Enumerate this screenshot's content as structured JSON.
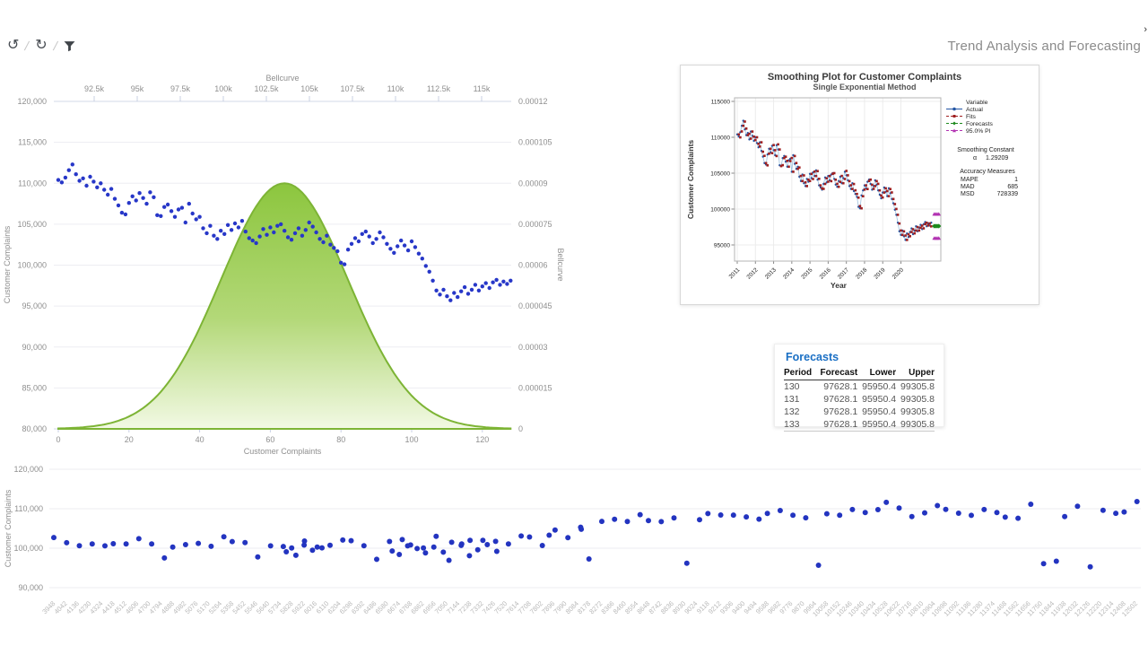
{
  "toolbar": {
    "undo_glyph": "↺",
    "refresh_glyph": "↻",
    "separator": "/",
    "filter_icon": "funnel-icon",
    "title": "Trend Analysis and Forecasting",
    "chevron_glyph": "›"
  },
  "forecasts_panel": {
    "title": "Forecasts",
    "columns": [
      "Period",
      "Forecast",
      "Lower",
      "Upper"
    ],
    "rows": [
      [
        "130",
        "97628.1",
        "95950.4",
        "99305.8"
      ],
      [
        "131",
        "97628.1",
        "95950.4",
        "99305.8"
      ],
      [
        "132",
        "97628.1",
        "95950.4",
        "99305.8"
      ],
      [
        "133",
        "97628.1",
        "95950.4",
        "99305.8"
      ]
    ]
  },
  "chart_data": [
    {
      "id": "bellcurve_scatter",
      "type": "scatter",
      "title": "",
      "x_bottom": {
        "label": "Customer Complaints",
        "ticks": [
          0,
          20,
          40,
          60,
          80,
          100,
          120
        ],
        "range": [
          0,
          128
        ]
      },
      "x_top": {
        "label": "Bellcurve",
        "ticks": [
          "92.5k",
          "95k",
          "97.5k",
          "100k",
          "102.5k",
          "105k",
          "107.5k",
          "110k",
          "112.5k",
          "115k"
        ],
        "range": [
          90000,
          117500
        ]
      },
      "y_left": {
        "label": "Customer Complaints",
        "ticks": [
          "120,000",
          "115,000",
          "110,000",
          "105,000",
          "100,000",
          "95,000",
          "90,000",
          "85,000",
          "80,000"
        ],
        "range": [
          80000,
          120000
        ]
      },
      "y_right": {
        "label": "Bellcurve",
        "ticks": [
          "0.00012",
          "0.000105",
          "0.00009",
          "0.000075",
          "0.00006",
          "0.000045",
          "0.00003",
          "0.000015",
          "0"
        ],
        "range": [
          0,
          0.00012
        ]
      },
      "grid": "horizontal",
      "scatter_color": "#2737c8",
      "bell": {
        "mean": 64,
        "sigma": 18,
        "peak": 9e-05,
        "stroke": "#7db435",
        "fill_top": "#8cc63e",
        "fill_bottom": "#f2f9e4"
      },
      "points_y_thousands": [
        110.4,
        110.1,
        110.7,
        111.6,
        112.3,
        111.1,
        110.3,
        110.6,
        109.7,
        110.8,
        110.2,
        109.5,
        110.0,
        109.2,
        108.6,
        109.3,
        108.1,
        107.3,
        106.4,
        106.2,
        107.6,
        108.4,
        107.9,
        108.8,
        108.2,
        107.5,
        108.9,
        108.3,
        106.1,
        106.0,
        107.1,
        107.4,
        106.6,
        105.9,
        106.8,
        107.0,
        105.2,
        107.5,
        106.3,
        105.6,
        105.9,
        104.5,
        103.9,
        104.8,
        103.6,
        103.2,
        104.2,
        103.8,
        104.9,
        104.3,
        105.1,
        104.6,
        105.4,
        104.1,
        103.3,
        103.0,
        102.7,
        103.5,
        104.4,
        103.7,
        104.6,
        104.0,
        104.8,
        105.0,
        104.2,
        103.4,
        103.1,
        103.9,
        104.5,
        103.6,
        104.3,
        105.2,
        104.7,
        104.0,
        103.2,
        102.8,
        103.6,
        102.5,
        102.1,
        101.7,
        100.3,
        100.1,
        101.9,
        102.6,
        103.3,
        102.9,
        103.8,
        104.1,
        103.5,
        102.7,
        103.2,
        104.0,
        103.4,
        102.6,
        102.0,
        101.5,
        102.3,
        103.0,
        102.4,
        101.8,
        102.9,
        102.2,
        101.4,
        100.8,
        99.9,
        99.2,
        98.1,
        96.9,
        96.4,
        97.0,
        96.2,
        95.7,
        96.6,
        96.1,
        96.8,
        97.3,
        96.5,
        97.0,
        97.6,
        96.9,
        97.4,
        97.8,
        97.2,
        97.9,
        98.2,
        97.6,
        98.0,
        97.7,
        98.1
      ]
    },
    {
      "id": "smoothing_plot",
      "type": "line",
      "title": "Smoothing Plot for Customer Complaints",
      "subtitle": "Single Exponential Method",
      "xlabel": "Year",
      "ylabel": "Customer Complaints",
      "x_ticks": [
        "2011",
        "2012",
        "2013",
        "2014",
        "2015",
        "2016",
        "2017",
        "2018",
        "2019",
        "2020"
      ],
      "y_ticks": [
        "115000",
        "110000",
        "105000",
        "100000",
        "95000"
      ],
      "ylim": [
        93000,
        116000
      ],
      "actual_source": "bellcurve_scatter",
      "fits_rule": "lag1_of_actual",
      "legend": {
        "header": "Variable",
        "entries": [
          {
            "label": "Actual",
            "color": "#2456a4",
            "marker": "circle"
          },
          {
            "label": "Fits",
            "color": "#a02020",
            "marker": "square"
          },
          {
            "label": "Forecasts",
            "color": "#1d8a1d",
            "marker": "diamond"
          },
          {
            "label": "95.0% PI",
            "color": "#b232b2",
            "marker": "triangle"
          }
        ]
      },
      "smoothing_constant": {
        "label": "Smoothing Constant",
        "alpha_symbol": "α",
        "alpha": "1.29209"
      },
      "accuracy": {
        "label": "Accuracy Measures",
        "rows": [
          [
            "MAPE",
            "1"
          ],
          [
            "MAD",
            "685"
          ],
          [
            "MSD",
            "728339"
          ]
        ]
      },
      "forecasts": {
        "periods": [
          130,
          131,
          132,
          133
        ],
        "value": 97628.1,
        "lower": 95950.4,
        "upper": 99305.8
      }
    },
    {
      "id": "complaints_strip",
      "type": "scatter",
      "ylabel": "Customer Complaints",
      "y_ticks": [
        "120,000",
        "110,000",
        "100,000",
        "90,000"
      ],
      "ylim": [
        90000,
        120000
      ],
      "dot_color": "#2334c0",
      "x_labels": [
        3948,
        4042,
        4136,
        4230,
        4324,
        4418,
        4512,
        4606,
        4700,
        4794,
        4888,
        4982,
        5076,
        5170,
        5264,
        5358,
        5452,
        5546,
        5640,
        5734,
        5828,
        5922,
        6016,
        6110,
        6204,
        6298,
        6392,
        6486,
        6580,
        6674,
        6768,
        6862,
        6956,
        7050,
        7144,
        7238,
        7332,
        7426,
        7520,
        7614,
        7708,
        7802,
        7896,
        7990,
        8084,
        8178,
        8272,
        8366,
        8460,
        8554,
        8648,
        8742,
        8836,
        8930,
        9024,
        9118,
        9212,
        9306,
        9400,
        9494,
        9588,
        9682,
        9776,
        9870,
        9964,
        10058,
        10152,
        10246,
        10340,
        10434,
        10528,
        10622,
        10716,
        10810,
        10904,
        10998,
        11092,
        11186,
        11280,
        11374,
        11468,
        11562,
        11656,
        11750,
        11844,
        11938,
        12032,
        12126,
        12220,
        12314,
        12408,
        12502
      ],
      "points_y_thousands": [
        102.3,
        101.8,
        100.9,
        101.2,
        100.6,
        101.0,
        100.8,
        102.0,
        101.5,
        97.8,
        100.4,
        100.9,
        101.1,
        100.2,
        102.5,
        102.1,
        101.7,
        97.9,
        100.6,
        100.3,
        99.8,
        101.4,
        100.7,
        101.0,
        102.2,
        101.9,
        100.5,
        96.9,
        101.3,
        102.6,
        101.1,
        100.2,
        103.0,
        96.8,
        100.8,
        101.6,
        102.4,
        102.0,
        101.2,
        103.1,
        102.7,
        100.4,
        104.2,
        103.1,
        105.6,
        97.4,
        106.8,
        107.2,
        106.5,
        108.1,
        107.4,
        107.0,
        107.8,
        96.2,
        107.1,
        108.5,
        108.0,
        108.8,
        108.2,
        107.5,
        108.8,
        109.4,
        108.1,
        107.3,
        96.1,
        109.0,
        108.5,
        109.8,
        108.9,
        109.5,
        111.2,
        110.6,
        108.3,
        109.1,
        110.8,
        109.7,
        108.6,
        107.9,
        110.2,
        109.3,
        108.0,
        107.6,
        111.0,
        95.8,
        96.3,
        108.4,
        110.9,
        95.4,
        109.6,
        108.7,
        108.9,
        111.4
      ],
      "extra_points": [
        [
          19.4,
          99.1
        ],
        [
          20.2,
          98.2
        ],
        [
          20.9,
          100.8
        ],
        [
          21.6,
          99.5
        ],
        [
          22.4,
          100.1
        ],
        [
          28.3,
          99.3
        ],
        [
          28.9,
          98.4
        ],
        [
          29.6,
          100.6
        ],
        [
          30.4,
          99.9
        ],
        [
          31.1,
          98.8
        ],
        [
          31.8,
          100.3
        ],
        [
          32.6,
          99.0
        ],
        [
          33.3,
          101.5
        ],
        [
          34.1,
          100.7
        ],
        [
          34.8,
          98.1
        ],
        [
          35.5,
          99.6
        ],
        [
          36.3,
          100.9
        ],
        [
          37.1,
          99.2
        ],
        [
          41.5,
          103.3
        ],
        [
          44.2,
          104.8
        ]
      ]
    }
  ]
}
